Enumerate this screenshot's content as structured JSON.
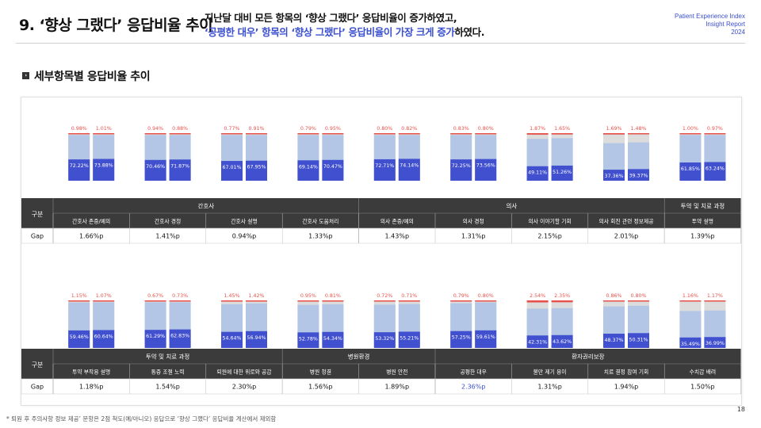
{
  "header": {
    "title": "9. ‘향상 그랬다’ 응답비율 추이",
    "headline_line1": "지난달 대비 모든 항목의 ‘향상 그랬다’ 응답비율이 증가하였고,",
    "headline_line2_highlight": "‘공평한 대우’ 항목의 ‘향상 그랬다’ 응답비율이 가장 크게 증가",
    "headline_line2_rest": "하였다.",
    "brand_line1": "Patient Experience Index",
    "brand_line2": "Insight Report",
    "brand_line3": "2024"
  },
  "section": {
    "mark": "›",
    "title": "세부항목별 응답비율 추이"
  },
  "table": {
    "row_header": "구분",
    "gap_label": "Gap"
  },
  "colors": {
    "dark": "#4150cf",
    "light": "#b3c6e6",
    "gray": "#dcdcdc",
    "red": "#e8504a",
    "header_bg": "#3b3b3b",
    "blue_text": "#3a4fcf"
  },
  "chart_data": [
    {
      "type": "bar",
      "stacked": true,
      "groups": [
        {
          "label": "간호사",
          "count": 4
        },
        {
          "label": "의사",
          "count": 4
        },
        {
          "label": "투약 및 치료 과정",
          "count": 1
        }
      ],
      "items": [
        {
          "category": "간호사 존중/예의",
          "top": [
            "0.98%",
            "1.01%"
          ],
          "values": [
            "72.22%",
            "73.88%"
          ],
          "fraction": [
            0.7222,
            0.7388
          ],
          "top_fraction": [
            0.0098,
            0.0101
          ],
          "gap": "1.66%p"
        },
        {
          "category": "간호사 경청",
          "top": [
            "0.94%",
            "0.88%"
          ],
          "values": [
            "70.46%",
            "71.87%"
          ],
          "fraction": [
            0.7046,
            0.7187
          ],
          "top_fraction": [
            0.0094,
            0.0088
          ],
          "gap": "1.41%p"
        },
        {
          "category": "간호사 설명",
          "top": [
            "0.77%",
            "0.91%"
          ],
          "values": [
            "67.01%",
            "67.95%"
          ],
          "fraction": [
            0.6701,
            0.6795
          ],
          "top_fraction": [
            0.0077,
            0.0091
          ],
          "gap": "0.94%p"
        },
        {
          "category": "간호사 도움처리",
          "top": [
            "0.79%",
            "0.95%"
          ],
          "values": [
            "69.14%",
            "70.47%"
          ],
          "fraction": [
            0.6914,
            0.7047
          ],
          "top_fraction": [
            0.0079,
            0.0095
          ],
          "gap": "1.33%p"
        },
        {
          "category": "의사 존중/예의",
          "top": [
            "0.80%",
            "0.82%"
          ],
          "values": [
            "72.71%",
            "74.14%"
          ],
          "fraction": [
            0.7271,
            0.7414
          ],
          "top_fraction": [
            0.008,
            0.0082
          ],
          "gap": "1.43%p"
        },
        {
          "category": "의사 경청",
          "top": [
            "0.83%",
            "0.80%"
          ],
          "values": [
            "72.25%",
            "73.56%"
          ],
          "fraction": [
            0.7225,
            0.7356
          ],
          "top_fraction": [
            0.0083,
            0.008
          ],
          "gap": "1.31%p"
        },
        {
          "category": "의사 이야기할 기회",
          "top": [
            "1.87%",
            "1.65%"
          ],
          "values": [
            "49.11%",
            "51.26%"
          ],
          "fraction": [
            0.4911,
            0.5126
          ],
          "top_fraction": [
            0.0187,
            0.0165
          ],
          "gap": "2.15%p"
        },
        {
          "category": "의사 회진 관련 정보제공",
          "top": [
            "1.69%",
            "1.48%"
          ],
          "values": [
            "37.36%",
            "39.37%"
          ],
          "fraction": [
            0.3736,
            0.3937
          ],
          "top_fraction": [
            0.0169,
            0.0148
          ],
          "gap": "2.01%p"
        },
        {
          "category": "투약 설명",
          "top": [
            "1.00%",
            "0.97%"
          ],
          "values": [
            "61.85%",
            "63.24%"
          ],
          "fraction": [
            0.6185,
            0.6324
          ],
          "top_fraction": [
            0.01,
            0.0097
          ],
          "gap": "1.39%p"
        }
      ]
    },
    {
      "type": "bar",
      "stacked": true,
      "groups": [
        {
          "label": "투약 및 치료 과정",
          "count": 3
        },
        {
          "label": "병원환경",
          "count": 2
        },
        {
          "label": "환자권리보장",
          "count": 4
        }
      ],
      "items": [
        {
          "category": "투약 부작용 설명",
          "top": [
            "1.15%",
            "1.07%"
          ],
          "values": [
            "59.46%",
            "60.64%"
          ],
          "fraction": [
            0.5946,
            0.6064
          ],
          "top_fraction": [
            0.0115,
            0.0107
          ],
          "gap": "1.18%p"
        },
        {
          "category": "통증 조절 노력",
          "top": [
            "0.67%",
            "0.73%"
          ],
          "values": [
            "61.29%",
            "62.83%"
          ],
          "fraction": [
            0.6129,
            0.6283
          ],
          "top_fraction": [
            0.0067,
            0.0073
          ],
          "gap": "1.54%p"
        },
        {
          "category": "퇴원에 대한 위로와 공감",
          "top": [
            "1.45%",
            "1.42%"
          ],
          "values": [
            "54.64%",
            "56.94%"
          ],
          "fraction": [
            0.5464,
            0.5694
          ],
          "top_fraction": [
            0.0145,
            0.0142
          ],
          "gap": "2.30%p"
        },
        {
          "category": "병원 청결",
          "top": [
            "0.95%",
            "0.81%"
          ],
          "values": [
            "52.78%",
            "54.34%"
          ],
          "fraction": [
            0.5278,
            0.5434
          ],
          "top_fraction": [
            0.0095,
            0.0081
          ],
          "gap": "1.56%p"
        },
        {
          "category": "병원 안전",
          "top": [
            "0.72%",
            "0.71%"
          ],
          "values": [
            "53.32%",
            "55.21%"
          ],
          "fraction": [
            0.5332,
            0.5521
          ],
          "top_fraction": [
            0.0072,
            0.0071
          ],
          "gap": "1.89%p"
        },
        {
          "category": "공평한 대우",
          "top": [
            "0.79%",
            "0.80%"
          ],
          "values": [
            "57.25%",
            "59.61%"
          ],
          "fraction": [
            0.5725,
            0.5961
          ],
          "top_fraction": [
            0.0079,
            0.008
          ],
          "gap": "2.36%p",
          "highlight": true
        },
        {
          "category": "불만 제기 용이",
          "top": [
            "2.54%",
            "2.35%"
          ],
          "values": [
            "42.31%",
            "43.62%"
          ],
          "fraction": [
            0.4231,
            0.4362
          ],
          "top_fraction": [
            0.0254,
            0.0235
          ],
          "gap": "1.31%p"
        },
        {
          "category": "치료 결정 참여 기회",
          "top": [
            "0.86%",
            "0.80%"
          ],
          "values": [
            "48.37%",
            "50.31%"
          ],
          "fraction": [
            0.4837,
            0.5031
          ],
          "top_fraction": [
            0.0086,
            0.008
          ],
          "gap": "1.94%p"
        },
        {
          "category": "수치감 배려",
          "top": [
            "1.16%",
            "1.17%"
          ],
          "values": [
            "35.49%",
            "36.99%"
          ],
          "fraction": [
            0.3549,
            0.3699
          ],
          "top_fraction": [
            0.0116,
            0.0117
          ],
          "gap": "1.50%p"
        }
      ]
    }
  ],
  "footnote": "* 퇴원 후 주의사항 정보 제공’ 문항은 2점 척도(예/아니오) 응답으로 ‘향상 그랬다’ 응답비율 계산에서 제외함",
  "page_number": "18"
}
